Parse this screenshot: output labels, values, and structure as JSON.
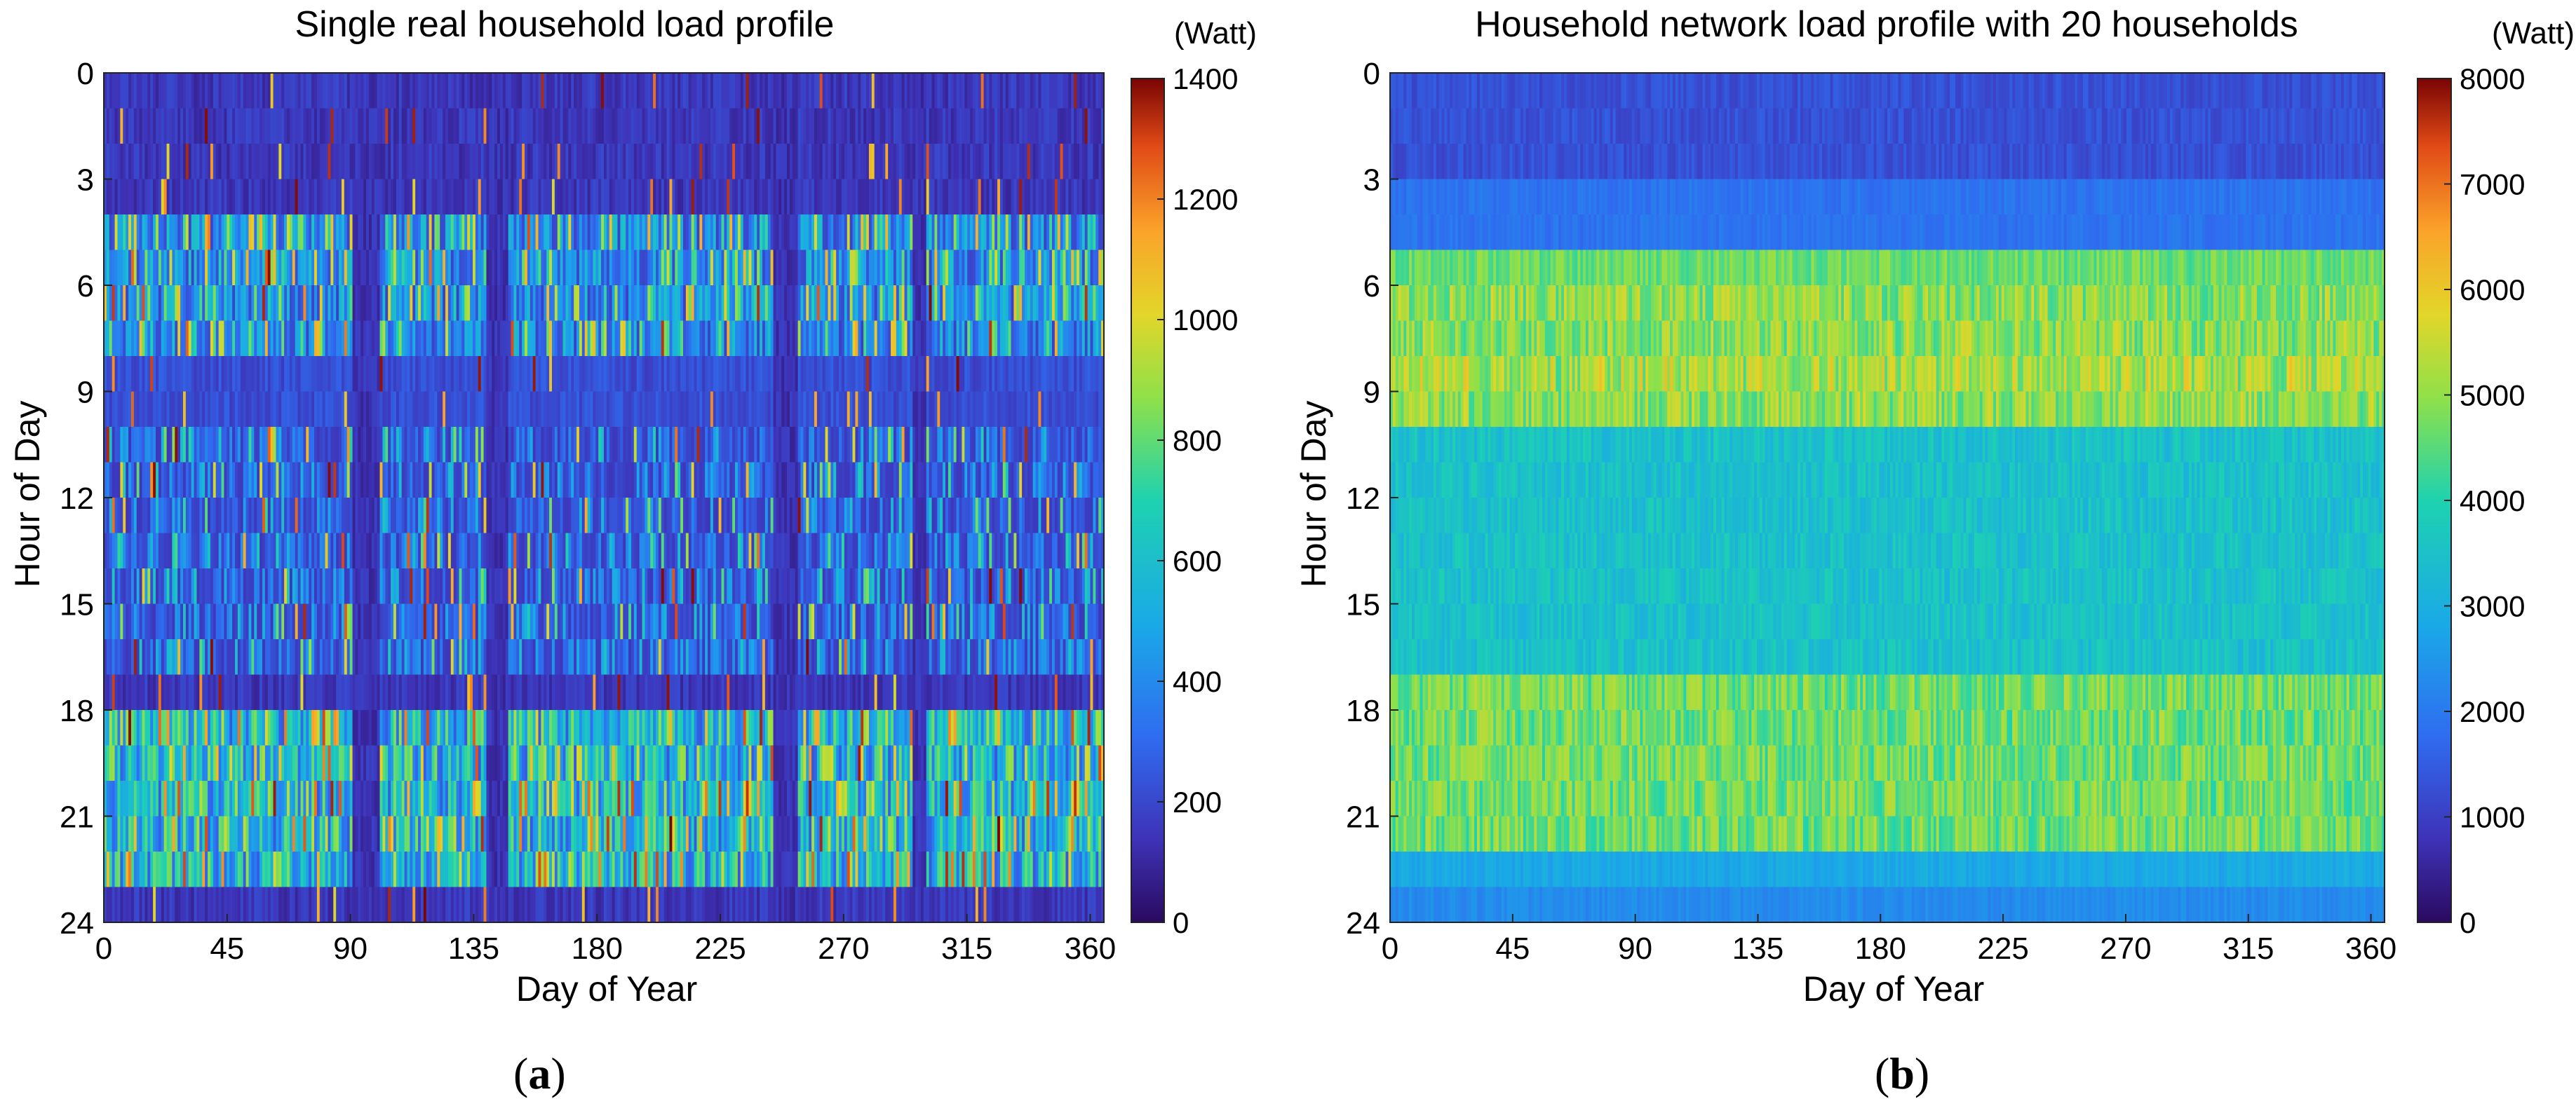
{
  "chart_data": [
    {
      "type": "heatmap",
      "title": "Single real household load profile",
      "xlabel": "Day of Year",
      "ylabel": "Hour of Day",
      "x_ticks": [
        0,
        45,
        90,
        135,
        180,
        225,
        270,
        315,
        360
      ],
      "y_ticks": [
        0,
        3,
        6,
        9,
        12,
        15,
        18,
        21,
        24
      ],
      "xlim": [
        0,
        365
      ],
      "ylim": [
        0,
        24
      ],
      "colorbar": {
        "unit": "(Watt)",
        "min": 0,
        "max": 1400,
        "ticks": [
          0,
          200,
          400,
          600,
          800,
          1000,
          1200,
          1400
        ],
        "colormap": "jet"
      },
      "pattern": {
        "night_level_watt": 150,
        "morning_peak_hours": [
          6,
          8
        ],
        "midday_active_hours": [
          10,
          17
        ],
        "evening_peak_hours": [
          18,
          23
        ],
        "absence_periods_days": [
          [
            91,
            100
          ],
          [
            140,
            147
          ],
          [
            245,
            253
          ],
          [
            296,
            300
          ]
        ],
        "peak_watt": 1400
      },
      "panel_label": "a"
    },
    {
      "type": "heatmap",
      "title": "Household network load profile with 20 households",
      "xlabel": "Day of Year",
      "ylabel": "Hour of Day",
      "x_ticks": [
        0,
        45,
        90,
        135,
        180,
        225,
        270,
        315,
        360
      ],
      "y_ticks": [
        0,
        3,
        6,
        9,
        12,
        15,
        18,
        21,
        24
      ],
      "xlim": [
        0,
        365
      ],
      "ylim": [
        0,
        24
      ],
      "colorbar": {
        "unit": "(Watt)",
        "min": 0,
        "max": 8000,
        "ticks": [
          0,
          1000,
          2000,
          3000,
          4000,
          5000,
          6000,
          7000,
          8000
        ],
        "colormap": "jet"
      },
      "pattern": {
        "night_level_watt": 1300,
        "morning_peak_hours": [
          6,
          9
        ],
        "midday_level_watt": 3400,
        "evening_peak_hours": [
          18,
          22
        ],
        "peak_watt": 6500
      },
      "panel_label": "b"
    }
  ]
}
